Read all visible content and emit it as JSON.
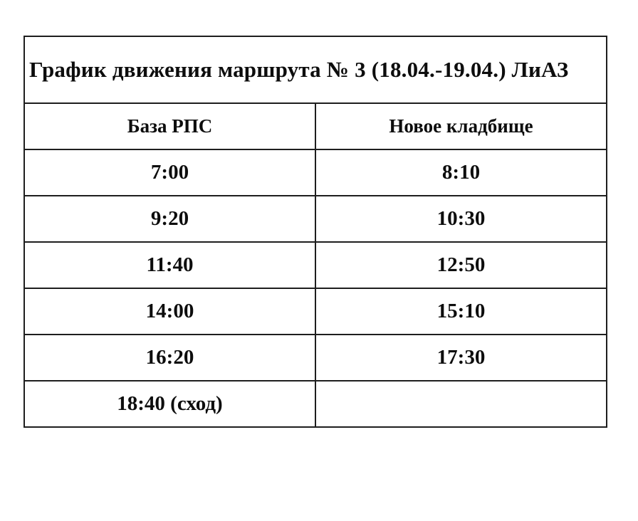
{
  "table": {
    "title": "График движения маршрута № 3 (18.04.-19.04.) ЛиАЗ",
    "columns": [
      "База РПС",
      "Новое кладбище"
    ],
    "rows": [
      [
        "7:00",
        "8:10"
      ],
      [
        "9:20",
        "10:30"
      ],
      [
        "11:40",
        "12:50"
      ],
      [
        "14:00",
        "15:10"
      ],
      [
        "16:20",
        "17:30"
      ],
      [
        "18:40 (сход)",
        ""
      ]
    ],
    "colors": {
      "border": "#1e1e1e",
      "text": "#0d0d0d",
      "background": "#ffffff"
    }
  }
}
